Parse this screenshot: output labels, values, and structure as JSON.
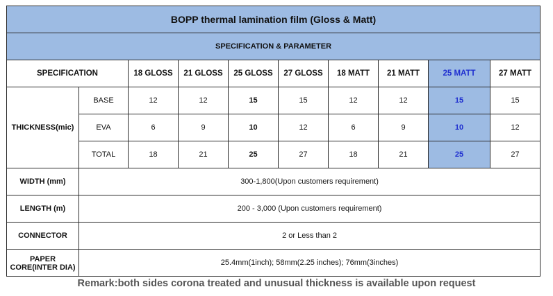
{
  "title": "BOPP thermal lamination film (Gloss & Matt)",
  "subtitle": "SPECIFICATION & PARAMETER",
  "header": {
    "spec_label": "SPECIFICATION",
    "columns": [
      "18 GLOSS",
      "21 GLOSS",
      "25 GLOSS",
      "27 GLOSS",
      "18 MATT",
      "21 MATT",
      "25 MATT",
      "27 MATT"
    ]
  },
  "thickness": {
    "label": "THICKNESS(mic)",
    "rows": [
      {
        "name": "BASE",
        "values": [
          "12",
          "12",
          "15",
          "15",
          "12",
          "12",
          "15",
          "15"
        ]
      },
      {
        "name": "EVA",
        "values": [
          "6",
          "9",
          "10",
          "12",
          "6",
          "9",
          "10",
          "12"
        ]
      },
      {
        "name": "TOTAL",
        "values": [
          "18",
          "21",
          "25",
          "27",
          "18",
          "21",
          "25",
          "27"
        ]
      }
    ]
  },
  "width": {
    "label": "WIDTH  (mm)",
    "value": "300-1,800(Upon customers requirement)"
  },
  "length": {
    "label": "LENGTH  (m)",
    "value": "200 - 3,000 (Upon customers requirement)"
  },
  "connector": {
    "label": "CONNECTOR",
    "value": "2 or Less than 2"
  },
  "paper_core": {
    "label": "PAPER CORE(INTER DIA)",
    "value": "25.4mm(1inch); 58mm(2.25 inches); 76mm(3inches)"
  },
  "remark": "Remark:both sides corona treated and unusual thickness is available upon request",
  "colors": {
    "header_bg": "#9dbbe3",
    "highlight_text": "#1f2fd0",
    "border": "#2a2a2a"
  }
}
